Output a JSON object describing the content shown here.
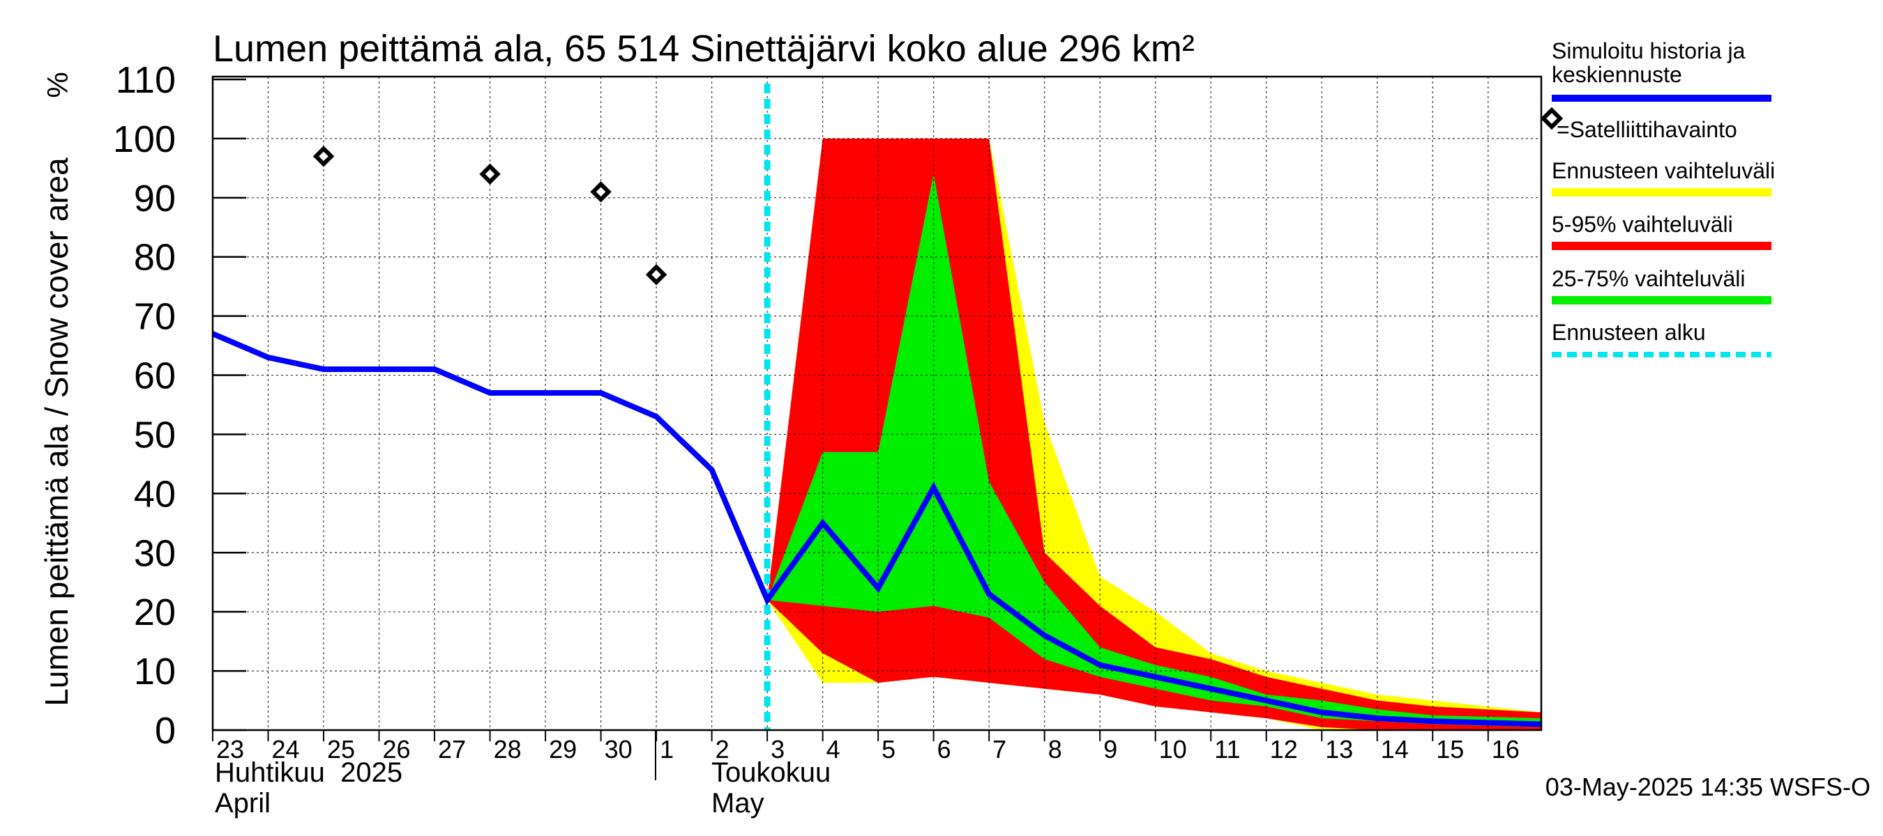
{
  "chart_data": {
    "type": "area",
    "title": "Lumen peittämä ala, 65 514 Sinettäjärvi koko alue 296 km²",
    "ylabel": "Lumen peittämä ala / Snow cover area",
    "yunit": "%",
    "ylim": [
      0,
      110
    ],
    "yticks": [
      0,
      10,
      20,
      30,
      40,
      50,
      60,
      70,
      80,
      90,
      100,
      110
    ],
    "xlim": [
      "2025-04-23",
      "2025-05-16T23:00"
    ],
    "x_tick_labels": [
      "23",
      "24",
      "25",
      "26",
      "27",
      "28",
      "29",
      "30",
      "1",
      "2",
      "3",
      "4",
      "5",
      "6",
      "7",
      "8",
      "9",
      "10",
      "11",
      "12",
      "13",
      "14",
      "15",
      "16"
    ],
    "month_labels": [
      {
        "fi": "Huhtikuu  2025",
        "en": "April"
      },
      {
        "fi": "Toukokuu",
        "en": "May"
      }
    ],
    "forecast_start": "2025-05-03",
    "grid": true,
    "legend_position": "right",
    "timestamp": "03-May-2025 14:35 WSFS-O",
    "legend": [
      {
        "label": "Simuloitu historia ja keskiennuste",
        "color": "#0000ff",
        "style": "line"
      },
      {
        "label": "=Satelliittihavainto",
        "color": "#000000",
        "style": "diamond"
      },
      {
        "label": "Ennusteen vaihteluväli",
        "color": "#ffff00",
        "style": "band"
      },
      {
        "label": "5-95% vaihteluväli",
        "color": "#ff0000",
        "style": "band"
      },
      {
        "label": "25-75% vaihteluväli",
        "color": "#00ee00",
        "style": "band"
      },
      {
        "label": "Ennusteen alku",
        "color": "#00e5ee",
        "style": "dashed"
      }
    ],
    "series": [
      {
        "name": "Simuloitu historia ja keskiennuste",
        "color": "#0000ff",
        "x": [
          "2025-04-23",
          "2025-04-24",
          "2025-04-25",
          "2025-04-26",
          "2025-04-27",
          "2025-04-28",
          "2025-04-29",
          "2025-04-30",
          "2025-05-01",
          "2025-05-02",
          "2025-05-03",
          "2025-05-04",
          "2025-05-05",
          "2025-05-06",
          "2025-05-07",
          "2025-05-08",
          "2025-05-09",
          "2025-05-10",
          "2025-05-11",
          "2025-05-12",
          "2025-05-13",
          "2025-05-14",
          "2025-05-15",
          "2025-05-16T23:00"
        ],
        "y": [
          67,
          63,
          61,
          61,
          61,
          57,
          57,
          57,
          53,
          44,
          22,
          35,
          24,
          41,
          23,
          16,
          11,
          9,
          7,
          5,
          3,
          2,
          1.5,
          1
        ]
      },
      {
        "name": "=Satelliittihavainto",
        "color": "#000000",
        "x": [
          "2025-04-25",
          "2025-04-28",
          "2025-04-30",
          "2025-05-01"
        ],
        "y": [
          97,
          94,
          91,
          77
        ]
      }
    ],
    "bands": [
      {
        "name": "Ennusteen vaihteluväli",
        "color": "#ffff00",
        "x": [
          "2025-05-03",
          "2025-05-04",
          "2025-05-05",
          "2025-05-06",
          "2025-05-07",
          "2025-05-08",
          "2025-05-09",
          "2025-05-10",
          "2025-05-11",
          "2025-05-12",
          "2025-05-13",
          "2025-05-14",
          "2025-05-15",
          "2025-05-16T23:00"
        ],
        "lower": [
          22,
          8,
          8,
          9,
          8,
          7,
          6,
          4,
          3,
          2,
          0,
          0,
          0,
          0
        ],
        "upper": [
          22,
          100,
          100,
          100,
          100,
          52,
          26,
          20,
          13,
          10,
          8,
          6,
          5,
          3
        ]
      },
      {
        "name": "5-95% vaihteluväli",
        "color": "#ff0000",
        "x": [
          "2025-05-03",
          "2025-05-04",
          "2025-05-05",
          "2025-05-06",
          "2025-05-07",
          "2025-05-08",
          "2025-05-09",
          "2025-05-10",
          "2025-05-11",
          "2025-05-12",
          "2025-05-13",
          "2025-05-14",
          "2025-05-15",
          "2025-05-16T23:00"
        ],
        "lower": [
          22,
          13,
          8,
          9,
          8,
          7,
          6,
          4,
          3,
          2,
          0.5,
          0,
          0,
          0
        ],
        "upper": [
          22,
          100,
          100,
          100,
          100,
          30,
          21,
          14,
          12,
          9,
          7,
          5,
          4,
          3
        ]
      },
      {
        "name": "25-75% vaihteluväli",
        "color": "#00ee00",
        "x": [
          "2025-05-03",
          "2025-05-04",
          "2025-05-05",
          "2025-05-06",
          "2025-05-07",
          "2025-05-08",
          "2025-05-09",
          "2025-05-10",
          "2025-05-11",
          "2025-05-12",
          "2025-05-13",
          "2025-05-14",
          "2025-05-15",
          "2025-05-16T23:00"
        ],
        "lower": [
          22,
          21,
          20,
          21,
          19,
          12,
          9,
          7,
          5,
          4,
          2,
          1.5,
          1,
          0.5
        ],
        "upper": [
          22,
          47,
          47,
          94,
          42,
          25,
          14,
          11,
          9,
          6,
          5,
          3.5,
          2.5,
          2
        ]
      }
    ]
  }
}
